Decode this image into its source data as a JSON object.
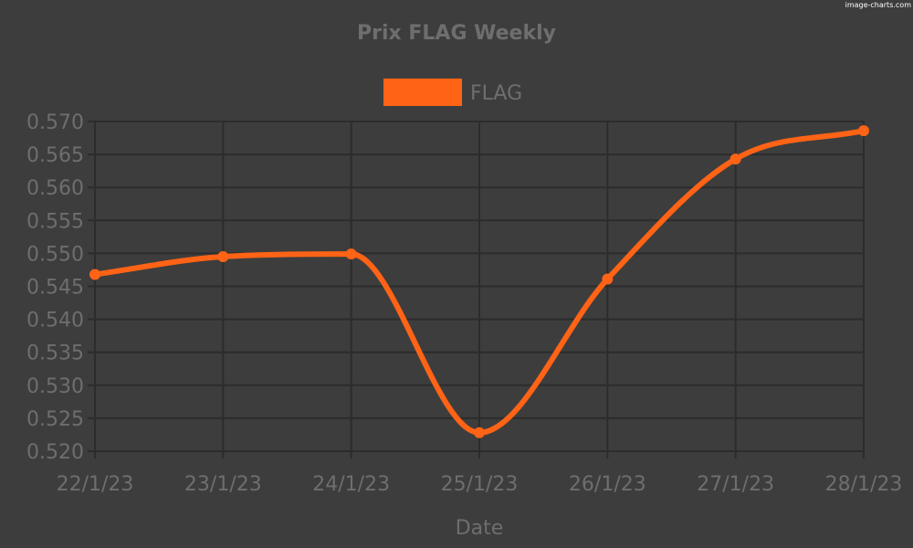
{
  "watermark": "image-charts.com",
  "chart_data": {
    "type": "line",
    "title": "Prix FLAG Weekly",
    "xlabel": "Date",
    "ylabel": "",
    "categories": [
      "22/1/23",
      "23/1/23",
      "24/1/23",
      "25/1/23",
      "26/1/23",
      "27/1/23",
      "28/1/23"
    ],
    "series": [
      {
        "name": "FLAG",
        "color": "#ff6316",
        "values": [
          0.5468,
          0.5495,
          0.5499,
          0.5228,
          0.5461,
          0.5643,
          0.5686
        ]
      }
    ],
    "ylim": [
      0.52,
      0.57
    ],
    "yticks": [
      "0.520",
      "0.525",
      "0.530",
      "0.535",
      "0.540",
      "0.545",
      "0.550",
      "0.555",
      "0.560",
      "0.565",
      "0.570"
    ],
    "grid": true,
    "legend_position": "top-center",
    "colors": {
      "background": "#3d3d3d",
      "grid": "#2c2c2c",
      "text": "#6e6e6e"
    }
  }
}
